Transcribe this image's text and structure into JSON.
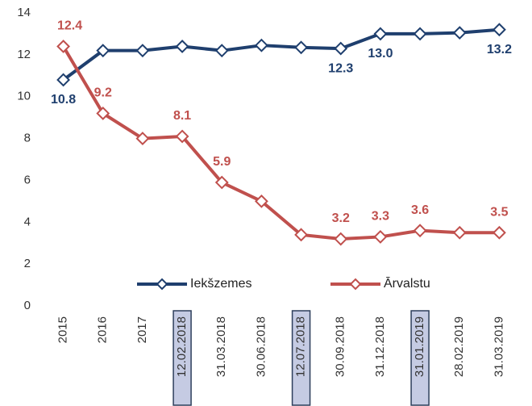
{
  "chart_data": {
    "type": "line",
    "categories": [
      "2015",
      "2016",
      "2017",
      "12.02.2018",
      "31.03.2018",
      "30.06.2018",
      "12.07.2018",
      "30.09.2018",
      "31.12.2018",
      "31.01.2019",
      "28.02.2019",
      "31.03.2019"
    ],
    "highlighted_indices": [
      3,
      6,
      9
    ],
    "series": [
      {
        "name": "Iekšzemes",
        "color": "#1f3f6e",
        "values": [
          10.8,
          12.2,
          12.2,
          12.4,
          12.2,
          12.45,
          12.35,
          12.3,
          13.0,
          13.0,
          13.05,
          13.2
        ],
        "value_labels": [
          "10.8",
          null,
          null,
          null,
          null,
          null,
          null,
          "12.3",
          "13.0",
          null,
          null,
          "13.2"
        ]
      },
      {
        "name": "Ārvalstu",
        "color": "#c0504d",
        "values": [
          12.4,
          9.2,
          8.0,
          8.1,
          5.9,
          5.0,
          3.4,
          3.2,
          3.3,
          3.6,
          3.5,
          3.5
        ],
        "value_labels": [
          "12.4",
          "9.2",
          null,
          "8.1",
          "5.9",
          null,
          null,
          "3.2",
          "3.3",
          "3.6",
          null,
          "3.5"
        ]
      }
    ],
    "ylim": [
      0,
      14
    ],
    "yticks": [
      0,
      2,
      4,
      6,
      8,
      10,
      12,
      14
    ],
    "grid": false,
    "legend": "lower center"
  }
}
